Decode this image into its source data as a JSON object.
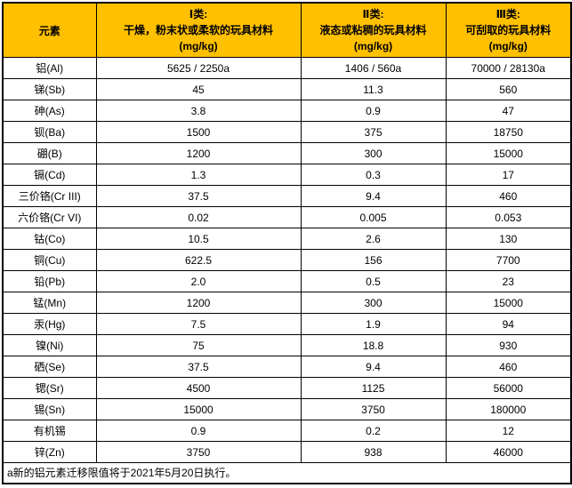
{
  "colors": {
    "header_bg": "#FFC000",
    "border": "#000000",
    "text": "#000000",
    "row_bg": "#FFFFFF"
  },
  "table": {
    "element_header": "元素",
    "categories": [
      {
        "title": "Ⅰ类:",
        "desc": "干燥，粉末状或柔软的玩具材料",
        "unit": "(mg/kg)"
      },
      {
        "title": "Ⅱ类:",
        "desc": "液态或粘稠的玩具材料",
        "unit": "(mg/kg)"
      },
      {
        "title": "Ⅲ类:",
        "desc": "可刮取的玩具材料",
        "unit": "(mg/kg)"
      }
    ],
    "rows": [
      {
        "element": "铝(Al)",
        "values": [
          "5625 / 2250a",
          "1406 / 560a",
          "70000 / 28130a"
        ]
      },
      {
        "element": "锑(Sb)",
        "values": [
          "45",
          "11.3",
          "560"
        ]
      },
      {
        "element": "砷(As)",
        "values": [
          "3.8",
          "0.9",
          "47"
        ]
      },
      {
        "element": "钡(Ba)",
        "values": [
          "1500",
          "375",
          "18750"
        ]
      },
      {
        "element": "硼(B)",
        "values": [
          "1200",
          "300",
          "15000"
        ]
      },
      {
        "element": "镉(Cd)",
        "values": [
          "1.3",
          "0.3",
          "17"
        ]
      },
      {
        "element": "三价铬(Cr III)",
        "values": [
          "37.5",
          "9.4",
          "460"
        ]
      },
      {
        "element": "六价铬(Cr VI)",
        "values": [
          "0.02",
          "0.005",
          "0.053"
        ]
      },
      {
        "element": "钴(Co)",
        "values": [
          "10.5",
          "2.6",
          "130"
        ]
      },
      {
        "element": "铜(Cu)",
        "values": [
          "622.5",
          "156",
          "7700"
        ]
      },
      {
        "element": "铅(Pb)",
        "values": [
          "2.0",
          "0.5",
          "23"
        ]
      },
      {
        "element": "锰(Mn)",
        "values": [
          "1200",
          "300",
          "15000"
        ]
      },
      {
        "element": "汞(Hg)",
        "values": [
          "7.5",
          "1.9",
          "94"
        ]
      },
      {
        "element": "镍(Ni)",
        "values": [
          "75",
          "18.8",
          "930"
        ]
      },
      {
        "element": "硒(Se)",
        "values": [
          "37.5",
          "9.4",
          "460"
        ]
      },
      {
        "element": "锶(Sr)",
        "values": [
          "4500",
          "1125",
          "56000"
        ]
      },
      {
        "element": "锡(Sn)",
        "values": [
          "15000",
          "3750",
          "180000"
        ]
      },
      {
        "element": "有机锡",
        "values": [
          "0.9",
          "0.2",
          "12"
        ]
      },
      {
        "element": "锌(Zn)",
        "values": [
          "3750",
          "938",
          "46000"
        ]
      }
    ],
    "footnote": "a新的铝元素迁移限值将于2021年5月20日执行。"
  }
}
